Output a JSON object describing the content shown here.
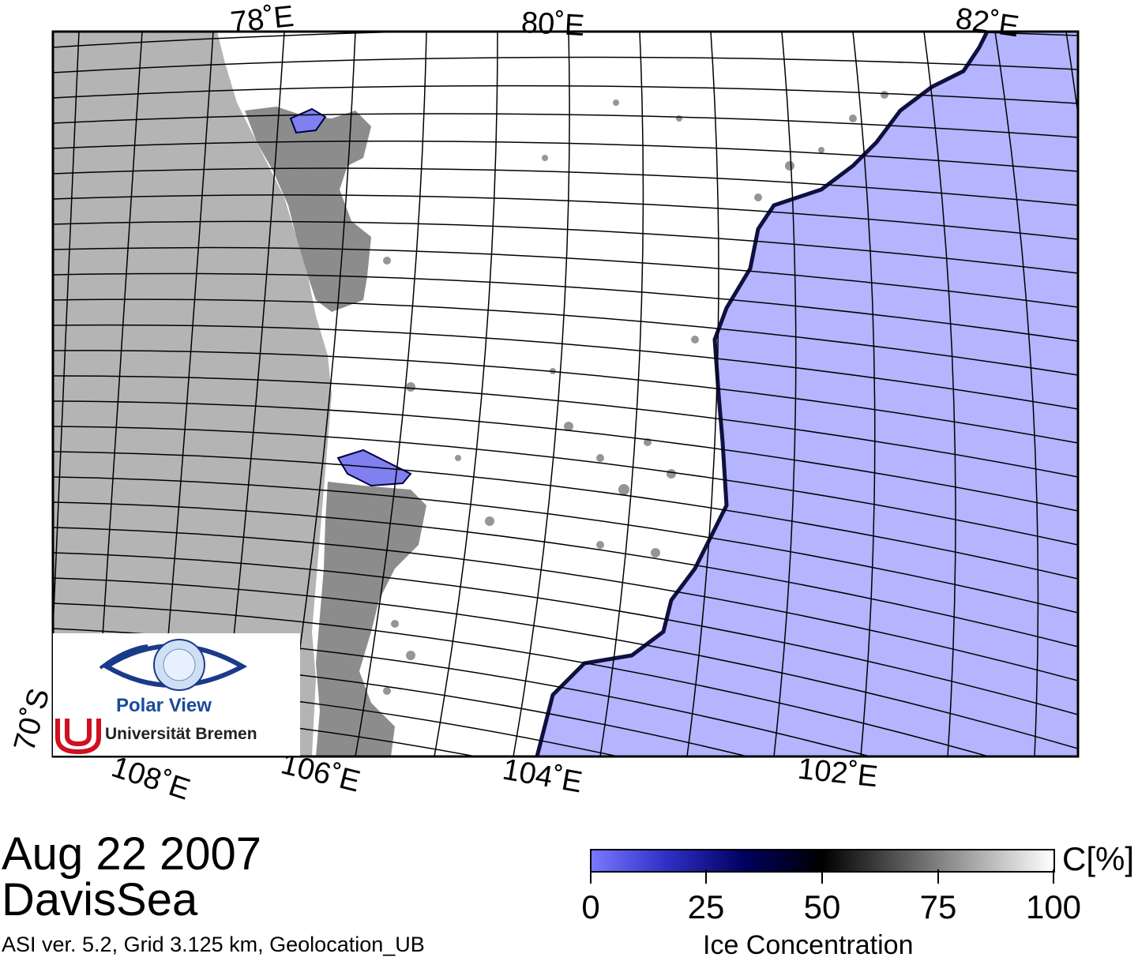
{
  "map": {
    "top_longitude_labels": [
      "78˚E",
      "80˚E",
      "82˚E"
    ],
    "bottom_longitude_labels": [
      "108˚E",
      "106˚E",
      "104˚E",
      "102˚E"
    ],
    "latitude_label": "70˚S",
    "colors": {
      "land": "#b4b4b4",
      "ice_shelf": "#8c8c8c",
      "sea_ice": "#ffffff",
      "open_water": "#b4b4ff",
      "grid": "#000000"
    }
  },
  "logo": {
    "name": "Polar View",
    "institution": "Universität Bremen",
    "icons": [
      "eye-globe-icon",
      "bremen-u-logo-icon"
    ]
  },
  "title": {
    "date": "Aug 22 2007",
    "region": "DavisSea"
  },
  "footer": {
    "info": "ASI ver. 5.2,  Grid 3.125 km, Geolocation_UB"
  },
  "colorbar": {
    "unit": "C[%]",
    "label": "Ice Concentration",
    "ticks": [
      "0",
      "25",
      "50",
      "75",
      "100"
    ],
    "min": 0,
    "max": 100,
    "colors": [
      "#7878ff",
      "#3030c8",
      "#000060",
      "#000000",
      "#808080",
      "#ffffff"
    ]
  }
}
